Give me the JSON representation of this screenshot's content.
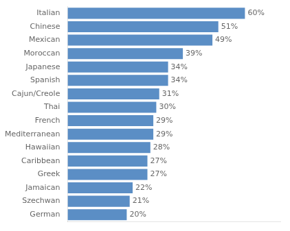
{
  "chart_data": {
    "type": "bar",
    "orientation": "horizontal",
    "categories": [
      "Italian",
      "Chinese",
      "Mexican",
      "Moroccan",
      "Japanese",
      "Spanish",
      "Cajun/Creole",
      "Thai",
      "French",
      "Mediterranean",
      "Hawaiian",
      "Caribbean",
      "Greek",
      "Jamaican",
      "Szechwan",
      "German"
    ],
    "values": [
      60,
      51,
      49,
      39,
      34,
      34,
      31,
      30,
      29,
      29,
      28,
      27,
      27,
      22,
      21,
      20
    ],
    "value_labels": [
      "60%",
      "51%",
      "49%",
      "39%",
      "34%",
      "34%",
      "31%",
      "30%",
      "29%",
      "29%",
      "28%",
      "27%",
      "27%",
      "22%",
      "21%",
      "20%"
    ],
    "data_labels": true,
    "color": "#5B8EC5",
    "xlim": [
      0,
      72
    ],
    "grid": false,
    "tick_labels": "y"
  }
}
